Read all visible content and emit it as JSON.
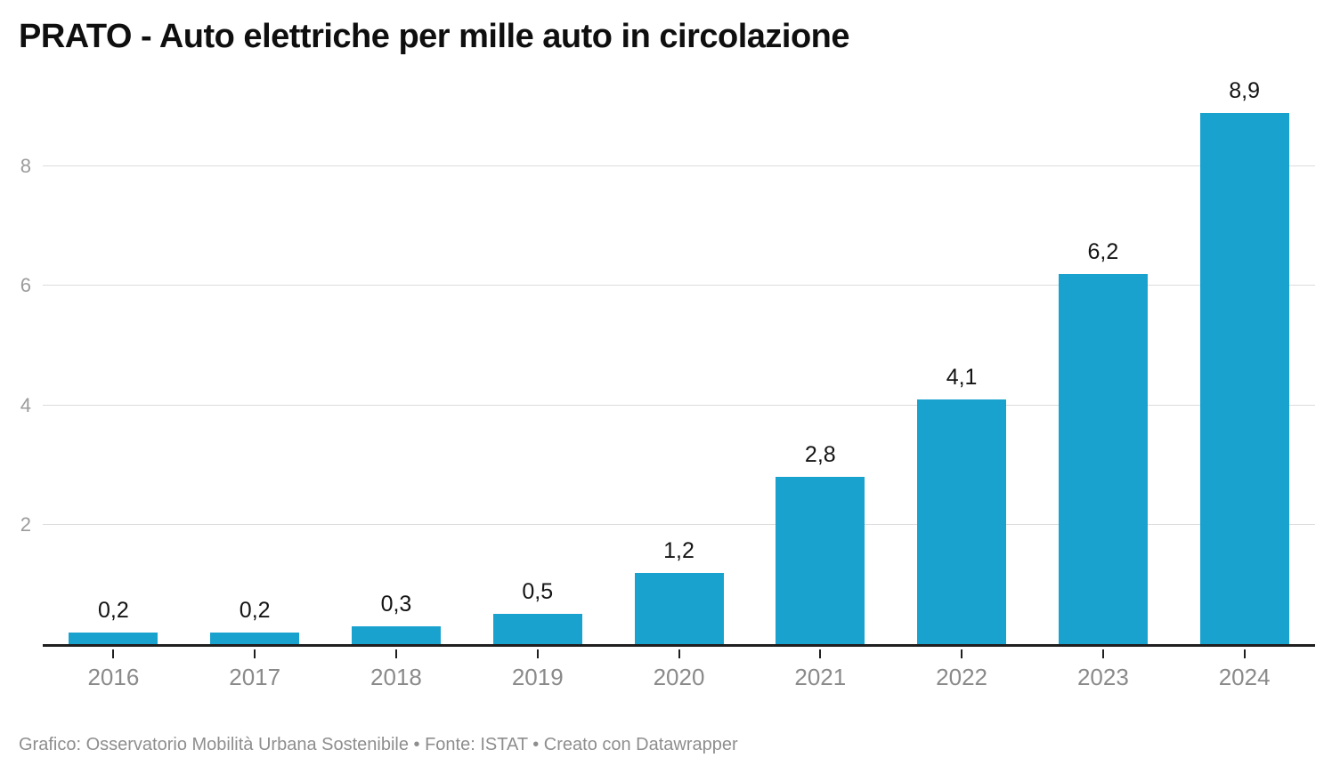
{
  "title": "PRATO - Auto elettriche per mille auto in circolazione",
  "footer": {
    "text": "Grafico: Osservatorio Mobilità Urbana Sostenibile • Fonte: ISTAT • Creato con Datawrapper"
  },
  "chart_data": {
    "type": "bar",
    "title": "PRATO - Auto elettriche per mille auto in circolazione",
    "categories": [
      "2016",
      "2017",
      "2018",
      "2019",
      "2020",
      "2021",
      "2022",
      "2023",
      "2024"
    ],
    "values": [
      0.2,
      0.2,
      0.3,
      0.5,
      1.2,
      2.8,
      4.1,
      6.2,
      8.9
    ],
    "value_labels": [
      "0,2",
      "0,2",
      "0,3",
      "0,5",
      "1,2",
      "2,8",
      "4,1",
      "6,2",
      "8,9"
    ],
    "xlabel": "",
    "ylabel": "",
    "ylim": [
      0,
      9.45
    ],
    "yticks": [
      2,
      4,
      6,
      8
    ],
    "grid": "horizontal-only",
    "legend_position": "none",
    "bar_color": "#1aa2cf"
  },
  "colors": {
    "bar": "#1aa2cf",
    "grid": "#dcdcdc",
    "axis": "#1f1f1f",
    "ytick_label": "#9b9b9b",
    "xtick_label": "#8a8a8a",
    "value_label": "#141414",
    "title": "#0f0f0f",
    "footer": "#8e8e8e"
  }
}
